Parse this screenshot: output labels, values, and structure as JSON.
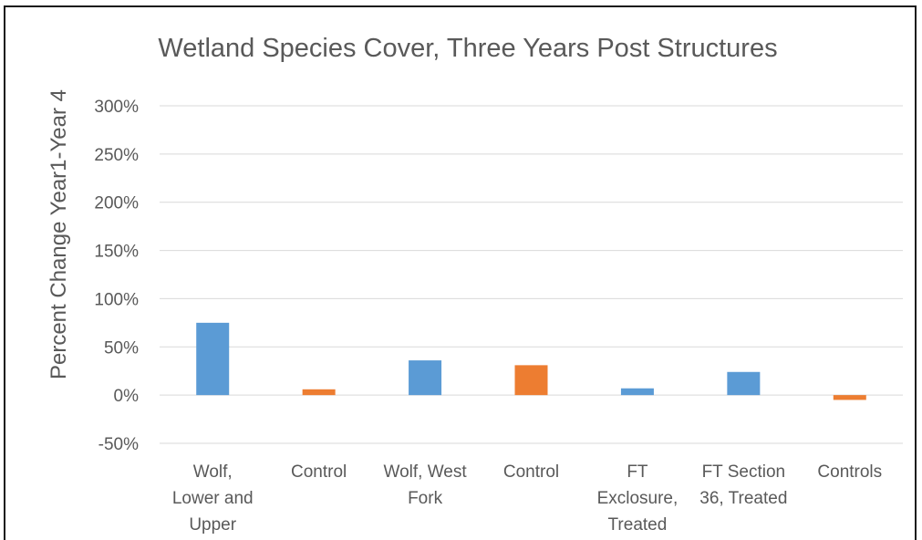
{
  "chart_data": {
    "type": "bar",
    "title": "Wetland Species Cover, Three Years Post Structures",
    "ylabel": "Percent Change Year1-Year 4",
    "xlabel": "",
    "ylim": [
      -0.5,
      3.0
    ],
    "yticks": [
      3.0,
      2.5,
      2.0,
      1.5,
      1.0,
      0.5,
      0.0,
      -0.5
    ],
    "ytick_labels": [
      "300%",
      "250%",
      "200%",
      "150%",
      "100%",
      "50%",
      "0%",
      "-50%"
    ],
    "grid": true,
    "legend": "none",
    "categories": [
      [
        "Wolf,",
        "Lower and",
        "Upper"
      ],
      [
        "Control"
      ],
      [
        "Wolf, West",
        "Fork"
      ],
      [
        "Control"
      ],
      [
        "FT",
        "Exclosure,",
        "Treated"
      ],
      [
        "FT Section",
        "36, Treated"
      ],
      [
        "Controls"
      ]
    ],
    "values": [
      0.75,
      0.06,
      0.36,
      0.31,
      0.07,
      0.24,
      -0.05
    ],
    "bar_colors": [
      "#5b9bd5",
      "#ed7d31",
      "#5b9bd5",
      "#ed7d31",
      "#5b9bd5",
      "#5b9bd5",
      "#ed7d31"
    ]
  },
  "style": {
    "gridline_color": "#d9d9d9",
    "text_color": "#595959"
  }
}
